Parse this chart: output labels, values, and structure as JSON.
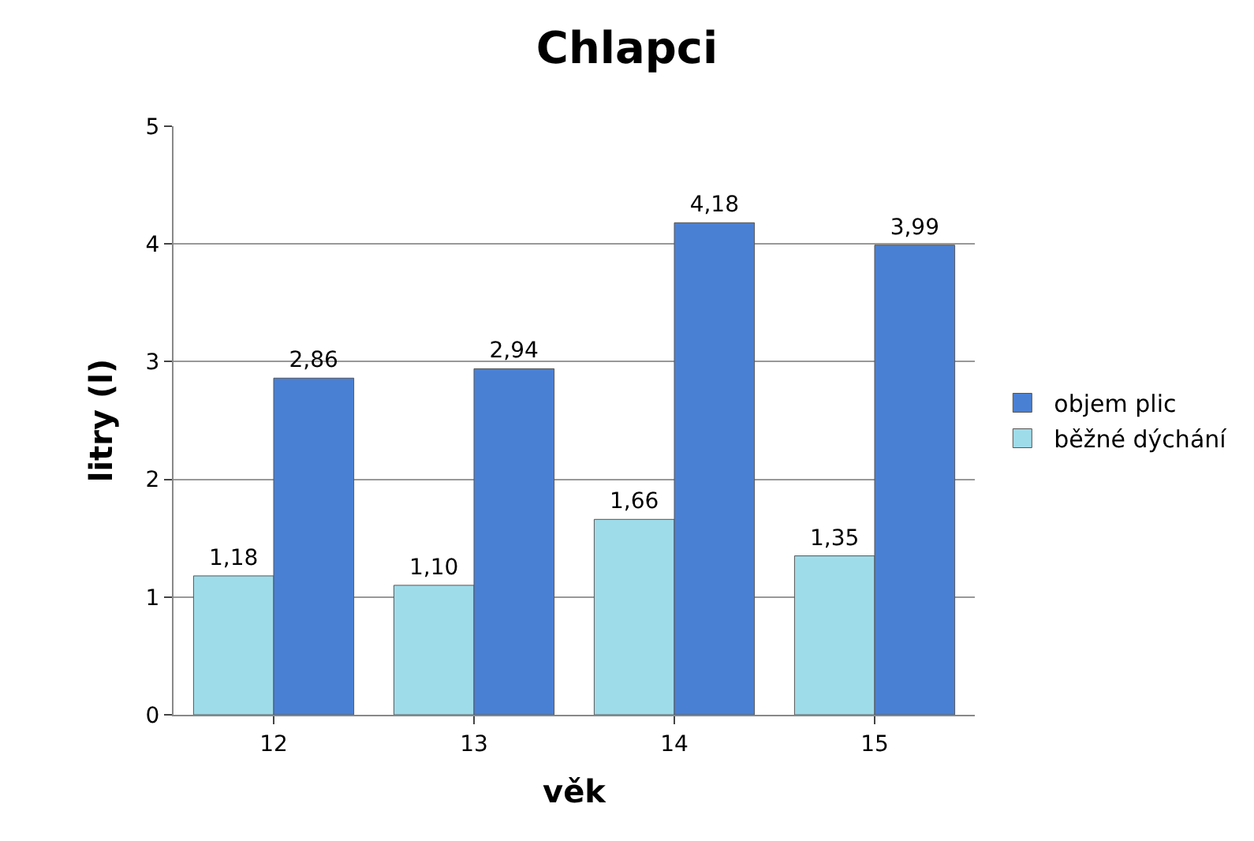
{
  "chart_data": {
    "type": "bar",
    "title": "Chlapci",
    "xlabel": "věk",
    "ylabel": "litry (l)",
    "categories": [
      "12",
      "13",
      "14",
      "15"
    ],
    "series": [
      {
        "name": "běžné dýchání",
        "color": "#9fdcea",
        "values": [
          1.18,
          1.1,
          1.66,
          1.35
        ],
        "value_labels": [
          "1,18",
          "1,10",
          "1,66",
          "1,35"
        ]
      },
      {
        "name": "objem plic",
        "color": "#4a80d4",
        "values": [
          2.86,
          2.94,
          4.18,
          3.99
        ],
        "value_labels": [
          "2,86",
          "2,94",
          "4,18",
          "3,99"
        ]
      }
    ],
    "ylim": [
      0,
      5
    ],
    "yticks": [
      0,
      1,
      2,
      3,
      4,
      5
    ],
    "grid": "y",
    "legend": "right"
  }
}
